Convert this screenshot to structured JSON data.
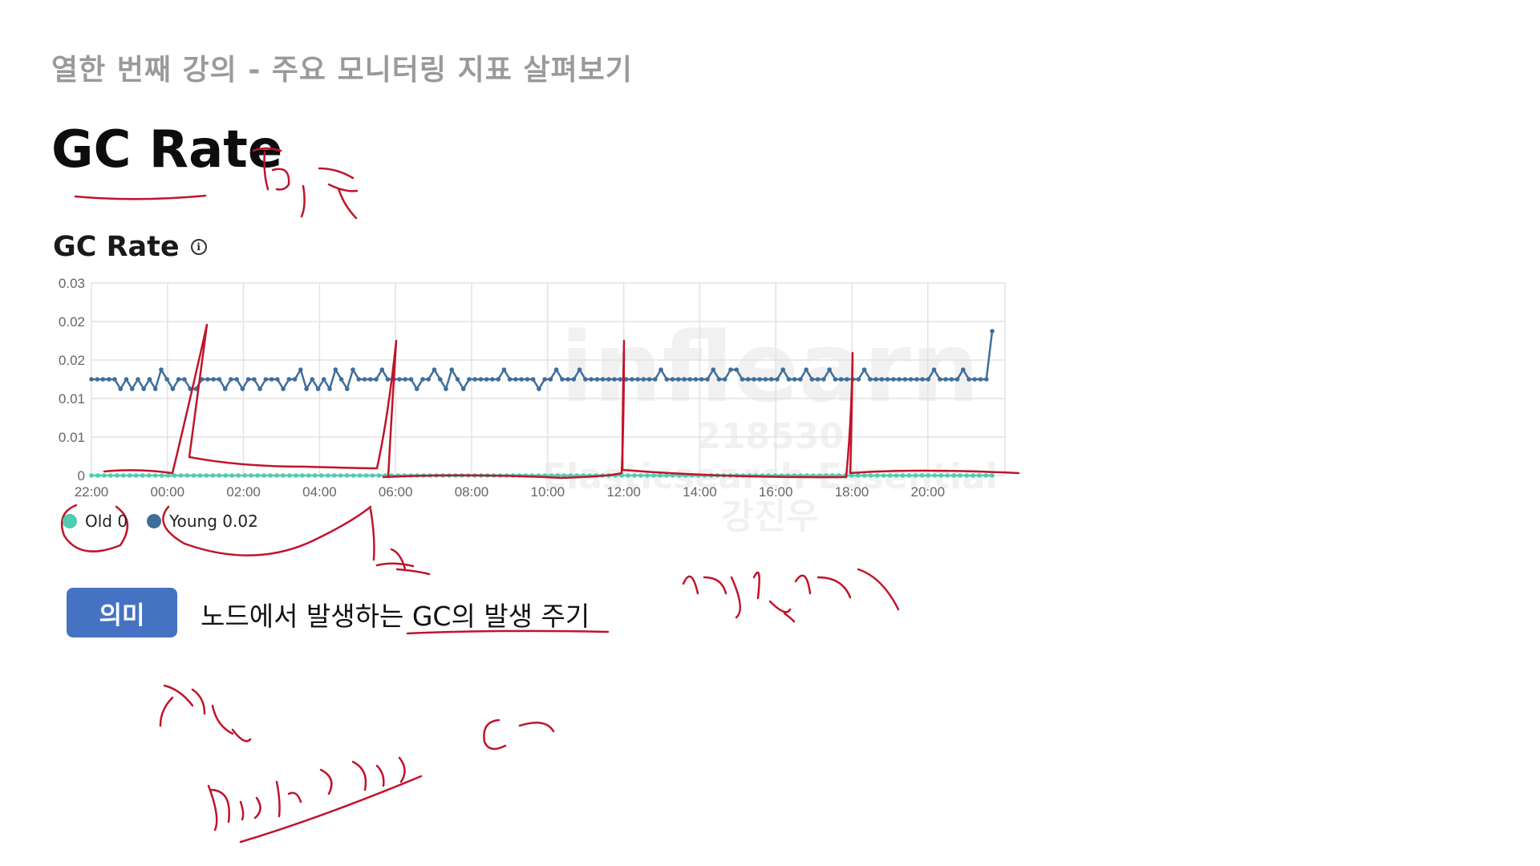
{
  "header": {
    "lecture_title": "열한 번째 강의 - 주요 모니터링 지표 살펴보기",
    "main_heading": "GC Rate"
  },
  "panel": {
    "title": "GC Rate",
    "info_icon": "info-circle-icon"
  },
  "chart_data": {
    "type": "line",
    "y_tick_labels": [
      "0",
      "0.01",
      "0.01",
      "0.02",
      "0.02",
      "0.03"
    ],
    "x_tick_labels": [
      "22:00",
      "00:00",
      "02:00",
      "04:00",
      "06:00",
      "08:00",
      "10:00",
      "12:00",
      "14:00",
      "16:00",
      "18:00",
      "20:00"
    ],
    "ylim": [
      0,
      0.03
    ],
    "grid": true,
    "legend_placement": "bottom-left",
    "series": [
      {
        "name": "Old",
        "color": "#4ecdb0",
        "values": [
          0,
          0,
          0,
          0,
          0,
          0,
          0,
          0,
          0,
          0,
          0,
          0,
          0,
          0,
          0,
          0,
          0,
          0,
          0,
          0,
          0,
          0,
          0,
          0,
          0,
          0,
          0,
          0,
          0,
          0,
          0,
          0,
          0,
          0,
          0,
          0,
          0,
          0,
          0,
          0,
          0,
          0,
          0,
          0,
          0,
          0,
          0,
          0,
          0,
          0,
          0,
          0,
          0,
          0,
          0,
          0,
          0,
          0,
          0,
          0,
          0,
          0,
          0,
          0,
          0,
          0,
          0,
          0,
          0,
          0,
          0,
          0,
          0,
          0,
          0,
          0,
          0,
          0,
          0,
          0,
          0,
          0,
          0,
          0,
          0,
          0,
          0,
          0,
          0,
          0,
          0,
          0,
          0,
          0,
          0,
          0,
          0,
          0,
          0,
          0,
          0,
          0,
          0,
          0,
          0,
          0,
          0,
          0,
          0,
          0,
          0,
          0,
          0,
          0,
          0,
          0,
          0,
          0,
          0,
          0,
          0,
          0,
          0,
          0,
          0,
          0,
          0,
          0,
          0,
          0,
          0,
          0,
          0,
          0,
          0,
          0,
          0,
          0,
          0,
          0,
          0,
          0
        ]
      },
      {
        "name": "Young",
        "color": "#3f6e9c",
        "values": [
          0.015,
          0.015,
          0.015,
          0.015,
          0.015,
          0.0135,
          0.015,
          0.0135,
          0.015,
          0.0135,
          0.015,
          0.0135,
          0.0165,
          0.015,
          0.0135,
          0.015,
          0.015,
          0.0135,
          0.0135,
          0.015,
          0.015,
          0.015,
          0.015,
          0.0135,
          0.015,
          0.015,
          0.0135,
          0.015,
          0.015,
          0.0135,
          0.015,
          0.015,
          0.015,
          0.0135,
          0.015,
          0.015,
          0.0165,
          0.0135,
          0.015,
          0.0135,
          0.015,
          0.0135,
          0.0165,
          0.015,
          0.0135,
          0.0165,
          0.015,
          0.015,
          0.015,
          0.015,
          0.0165,
          0.015,
          0.015,
          0.015,
          0.015,
          0.015,
          0.0135,
          0.015,
          0.015,
          0.0165,
          0.015,
          0.0135,
          0.0165,
          0.015,
          0.0135,
          0.015,
          0.015,
          0.015,
          0.015,
          0.015,
          0.015,
          0.0165,
          0.015,
          0.015,
          0.015,
          0.015,
          0.015,
          0.0135,
          0.015,
          0.015,
          0.0165,
          0.015,
          0.015,
          0.015,
          0.0165,
          0.015,
          0.015,
          0.015,
          0.015,
          0.015,
          0.015,
          0.015,
          0.015,
          0.015,
          0.015,
          0.015,
          0.015,
          0.015,
          0.0165,
          0.015,
          0.015,
          0.015,
          0.015,
          0.015,
          0.015,
          0.015,
          0.015,
          0.0165,
          0.015,
          0.015,
          0.0165,
          0.0165,
          0.015,
          0.015,
          0.015,
          0.015,
          0.015,
          0.015,
          0.015,
          0.0165,
          0.015,
          0.015,
          0.015,
          0.0165,
          0.015,
          0.015,
          0.015,
          0.0165,
          0.015,
          0.015,
          0.015,
          0.015,
          0.015,
          0.0165,
          0.015,
          0.015,
          0.015,
          0.015,
          0.015,
          0.015,
          0.015,
          0.015,
          0.015,
          0.015,
          0.015,
          0.0165,
          0.015,
          0.015,
          0.015,
          0.015,
          0.0165,
          0.015,
          0.015,
          0.015,
          0.015,
          0.0225
        ]
      }
    ]
  },
  "legend": {
    "old_label": "Old 0",
    "young_label": "Young 0.02"
  },
  "meaning": {
    "badge": "의미",
    "text": "노드에서 발생하는 GC의 발생 주기"
  },
  "watermark": {
    "logo": "inflearn",
    "id": "218530",
    "course": "Elasticsearch Essential",
    "author": "강진우"
  },
  "annotations_color": "#c0142a"
}
